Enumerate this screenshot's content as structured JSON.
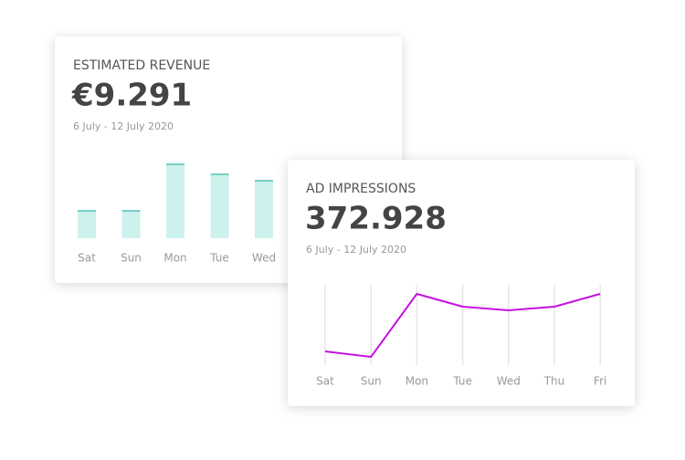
{
  "chart_data": [
    {
      "type": "bar",
      "title": "ESTIMATED REVENUE",
      "total": "€9.291",
      "subtitle": "6 July - 12 July 2020",
      "categories": [
        "Sat",
        "Sun",
        "Mon",
        "Tue",
        "Wed"
      ],
      "values": [
        30,
        30,
        81,
        70,
        63
      ],
      "color": "#cdf1ec",
      "edge_color": "#4fc6b6",
      "ylim": [
        0,
        100
      ]
    },
    {
      "type": "line",
      "title": "AD IMPRESSIONS",
      "total": "372.928",
      "subtitle": "6 July - 12 July 2020",
      "categories": [
        "Sat",
        "Sun",
        "Mon",
        "Tue",
        "Wed",
        "Thu",
        "Fri"
      ],
      "values": [
        20,
        14,
        83,
        69,
        65,
        69,
        83
      ],
      "color": "#c512e0",
      "ylim": [
        0,
        100
      ]
    }
  ]
}
